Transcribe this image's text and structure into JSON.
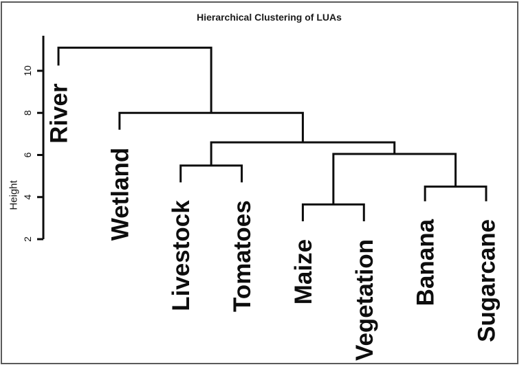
{
  "window": {
    "background": "#ffffff",
    "border_color": "#5a5a5a"
  },
  "chart_data": {
    "type": "dendrogram",
    "title": "Hierarchical Clustering of LUAs",
    "ylabel": "Height",
    "yticks": [
      2,
      4,
      6,
      8,
      10
    ],
    "ylim": [
      2,
      11.7
    ],
    "grid": false,
    "line_color": "#0d0d0d",
    "leaves": [
      {
        "label": "River",
        "tip_height": 10.25
      },
      {
        "label": "Wetland",
        "tip_height": 7.2
      },
      {
        "label": "Livestock",
        "tip_height": 4.7
      },
      {
        "label": "Tomatoes",
        "tip_height": 4.7
      },
      {
        "label": "Maize",
        "tip_height": 2.85
      },
      {
        "label": "Vegetation",
        "tip_height": 2.85
      },
      {
        "label": "Banana",
        "tip_height": 3.8
      },
      {
        "label": "Sugarcane",
        "tip_height": 3.8
      }
    ],
    "merges": [
      {
        "a": "L2",
        "b": "L3",
        "height": 5.5
      },
      {
        "a": "L4",
        "b": "L5",
        "height": 3.65
      },
      {
        "a": "L6",
        "b": "L7",
        "height": 4.5
      },
      {
        "a": "M1",
        "b": "M2",
        "height": 6.05
      },
      {
        "a": "M0",
        "b": "M3",
        "height": 6.6
      },
      {
        "a": "L1",
        "b": "M4",
        "height": 8.0
      },
      {
        "a": "L0",
        "b": "M5",
        "height": 11.1
      }
    ]
  }
}
